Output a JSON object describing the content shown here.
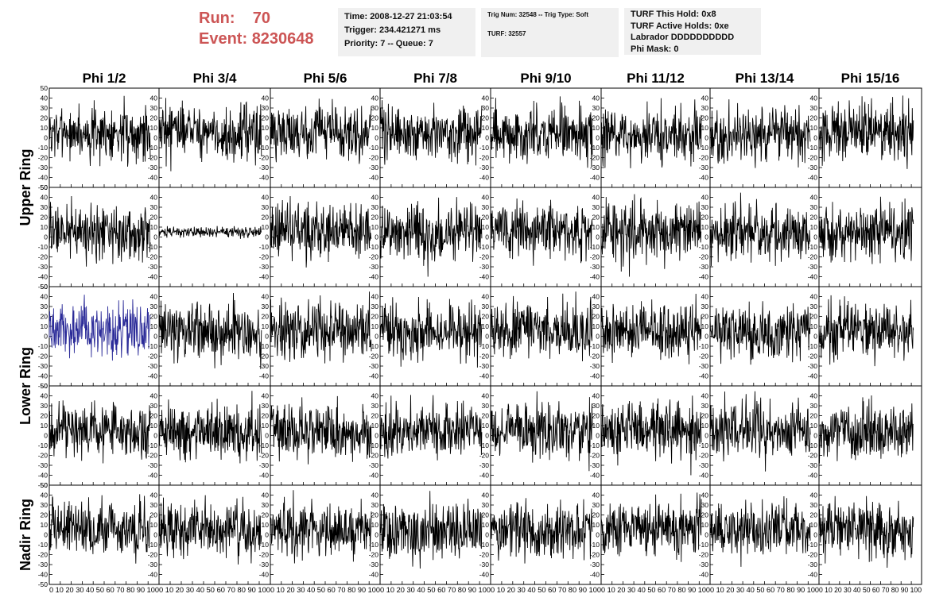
{
  "header": {
    "run_label": "Run:",
    "run_value": "70",
    "event_label": "Event:",
    "event_value": "8230648",
    "time_line": "Time: 2008-12-27 21:03:54",
    "trigger_line": "Trigger: 234.421271 ms",
    "priority_line": "Priority: 7 -- Queue: 7",
    "trig_num_line": "Trig Num: 32548 -- Trig Type: Soft",
    "turf_line": "TURF: 32557",
    "turf_hold_line": "TURF This Hold: 0x8",
    "turf_active_line": "TURF Active Holds: 0xe",
    "labrador_line": "Labrador DDDDDDDDDD",
    "phi_mask_line": "Phi Mask: 0"
  },
  "chart_data": {
    "type": "line",
    "columns": [
      "Phi 1/2",
      "Phi 3/4",
      "Phi 5/6",
      "Phi 7/8",
      "Phi 9/10",
      "Phi 11/12",
      "Phi 13/14",
      "Phi 15/16"
    ],
    "ring_labels": [
      {
        "label": "Upper Ring",
        "rows": [
          0,
          1
        ]
      },
      {
        "label": "Lower Ring",
        "rows": [
          2,
          3
        ]
      },
      {
        "label": "Nadir Ring",
        "rows": [
          4
        ]
      }
    ],
    "rows": 5,
    "xlim": [
      0,
      100
    ],
    "ylim": [
      -50,
      50
    ],
    "x_ticks": [
      0,
      10,
      20,
      30,
      40,
      50,
      60,
      70,
      80,
      90,
      100
    ],
    "x_tick_labels_text": "0 10 20 30 40 50 60 70 80 90 100",
    "y_ticks": [
      -40,
      -30,
      -20,
      -10,
      0,
      10,
      20,
      30,
      40
    ],
    "y_tick_labels": [
      "-40",
      "-30",
      "-20",
      "-10",
      "0",
      "10",
      "20",
      "30",
      "40"
    ],
    "y_tick_labels_left": [
      "-50",
      "-40",
      "-30",
      "-20",
      "-10",
      "0",
      "10",
      "20",
      "30",
      "40",
      "50"
    ],
    "series_color": "#000000",
    "highlight_color": "#2c2c99",
    "highlight_cell": {
      "row": 2,
      "col": 0
    },
    "waveform": {
      "samples": 260,
      "x_range": [
        0,
        92
      ],
      "baseline": 5,
      "typical_amplitude": 16,
      "peak_range": [
        -40,
        45
      ]
    },
    "quiet_cell": {
      "row": 1,
      "col": 1,
      "amplitude": 3
    }
  }
}
